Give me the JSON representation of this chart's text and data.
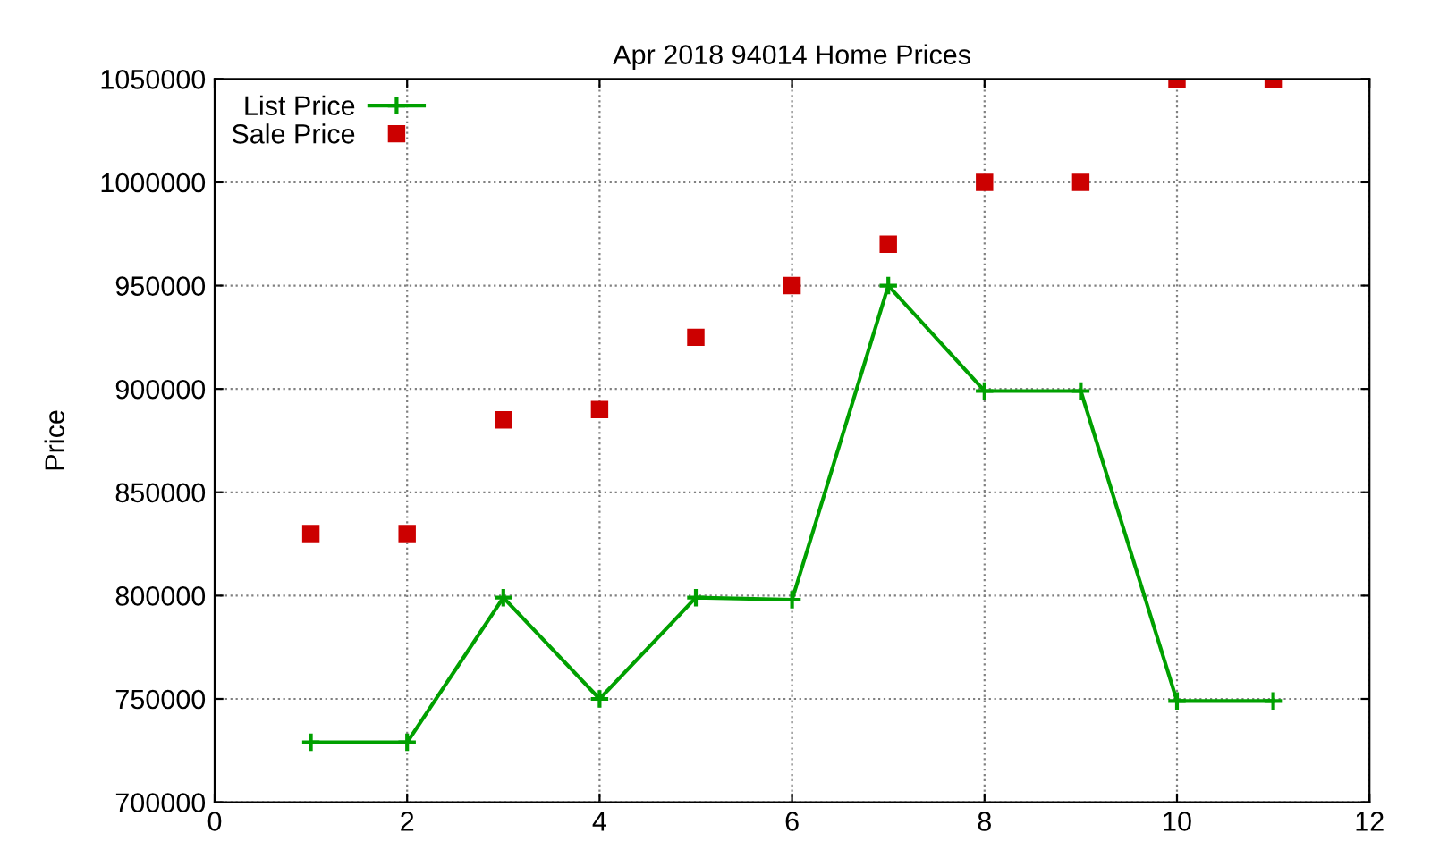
{
  "chart_data": {
    "type": "line",
    "title": "Apr 2018 94014 Home Prices",
    "ylabel": "Price",
    "x": [
      1,
      2,
      3,
      4,
      5,
      6,
      7,
      8,
      9,
      10,
      11
    ],
    "series": [
      {
        "name": "List Price",
        "color": "#00a000",
        "marker": "cross",
        "values": [
          729000,
          729000,
          799000,
          750000,
          799000,
          798000,
          950000,
          899000,
          899000,
          749000,
          749000
        ]
      },
      {
        "name": "Sale Price",
        "type": "scatter",
        "color": "#cc0000",
        "marker": "square",
        "values": [
          830000,
          830000,
          885000,
          890000,
          925000,
          950000,
          970000,
          1000000,
          1000000,
          1050000,
          1050000
        ]
      }
    ],
    "xlim": [
      0,
      12
    ],
    "xticks": [
      0,
      2,
      4,
      6,
      8,
      10,
      12
    ],
    "ylim": [
      700000,
      1050000
    ],
    "yticks": [
      700000,
      750000,
      800000,
      850000,
      900000,
      950000,
      1000000,
      1050000
    ],
    "grid": true,
    "legend": "top left"
  }
}
